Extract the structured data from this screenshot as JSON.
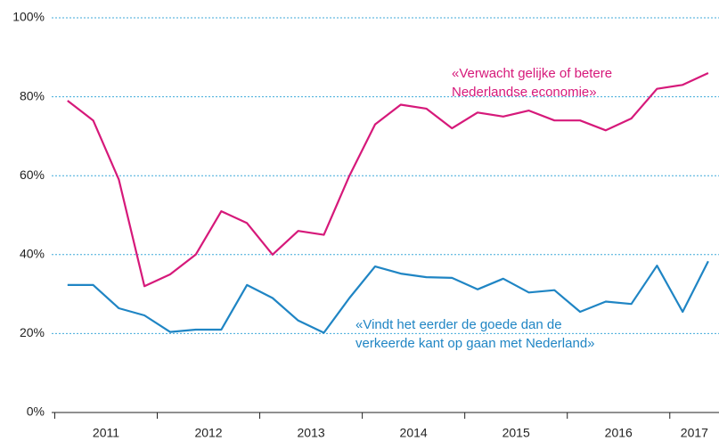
{
  "chart_data": {
    "type": "line",
    "x": [
      2011.125,
      2011.375,
      2011.625,
      2011.875,
      2012.125,
      2012.375,
      2012.625,
      2012.875,
      2013.125,
      2013.375,
      2013.625,
      2013.875,
      2014.125,
      2014.375,
      2014.625,
      2014.875,
      2015.125,
      2015.375,
      2015.625,
      2015.875,
      2016.125,
      2016.375,
      2016.625,
      2016.875,
      2017.125,
      2017.375
    ],
    "xlim": [
      2010.97,
      2017.48
    ],
    "xticks": [
      {
        "value": 2011,
        "label": "2011"
      },
      {
        "value": 2012,
        "label": "2012"
      },
      {
        "value": 2013,
        "label": "2013"
      },
      {
        "value": 2014,
        "label": "2014"
      },
      {
        "value": 2015,
        "label": "2015"
      },
      {
        "value": 2016,
        "label": "2016"
      },
      {
        "value": 2017,
        "label": "2017"
      }
    ],
    "ylim": [
      0,
      100
    ],
    "yticks": [
      {
        "value": 0,
        "label": "0%"
      },
      {
        "value": 20,
        "label": "20%"
      },
      {
        "value": 40,
        "label": "40%"
      },
      {
        "value": 60,
        "label": "60%"
      },
      {
        "value": 80,
        "label": "80%"
      },
      {
        "value": 100,
        "label": "100%"
      }
    ],
    "grid": true,
    "series": [
      {
        "color": "#d6197a",
        "values": [
          79,
          74,
          59,
          32,
          35,
          40,
          51,
          48,
          40,
          46,
          45,
          60,
          73,
          78,
          77,
          72,
          76,
          75,
          76.5,
          74,
          74,
          71.5,
          74.5,
          82,
          83,
          86
        ]
      },
      {
        "color": "#1f85c4",
        "values": [
          32.3,
          32.3,
          26.4,
          24.6,
          20.4,
          21,
          21,
          32.3,
          29,
          23.3,
          20.2,
          29,
          37,
          35.2,
          34.3,
          34.1,
          31.2,
          33.9,
          30.4,
          31,
          25.5,
          28.1,
          27.5,
          37.2,
          25.5,
          38.3
        ]
      }
    ],
    "annotations": [
      {
        "color": "#d6197a",
        "lines": [
          "«Verwacht gelijke of betere",
          "Nederlandse economie»"
        ]
      },
      {
        "color": "#1f85c4",
        "lines": [
          "«Vindt het eerder de goede dan de",
          "verkeerde kant op gaan met Nederland»"
        ]
      }
    ]
  }
}
